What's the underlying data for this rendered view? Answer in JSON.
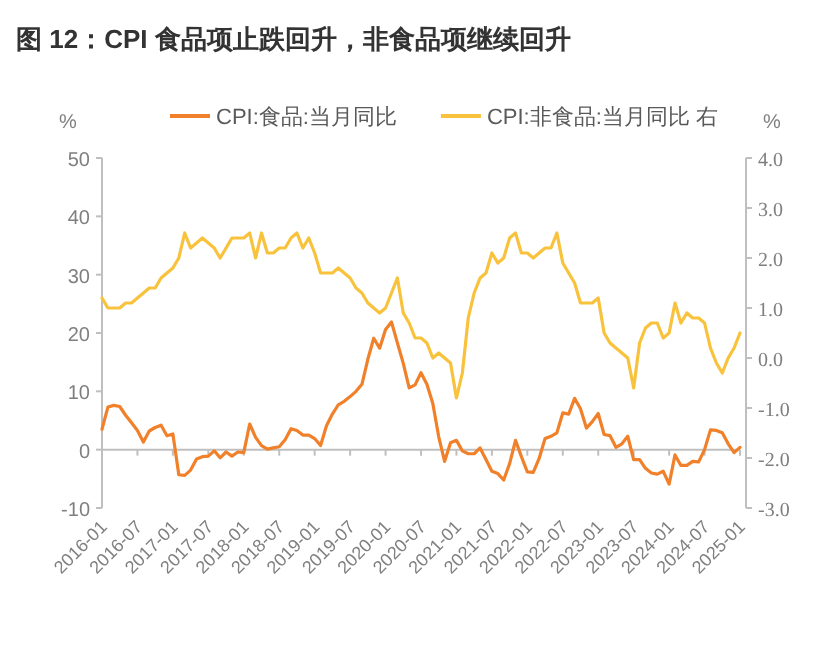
{
  "chart_data": {
    "type": "line",
    "title": "图 12：CPI 食品项止跌回升，非食品项继续回升",
    "ylabel": "%",
    "y2label": "%",
    "categories": [
      "2016-01",
      null,
      null,
      null,
      null,
      null,
      "2016-07",
      null,
      null,
      null,
      null,
      null,
      "2017-01",
      null,
      null,
      null,
      null,
      null,
      "2017-07",
      null,
      null,
      null,
      null,
      null,
      "2018-01",
      null,
      null,
      null,
      null,
      null,
      "2018-07",
      null,
      null,
      null,
      null,
      null,
      "2019-01",
      null,
      null,
      null,
      null,
      null,
      "2019-07",
      null,
      null,
      null,
      null,
      null,
      "2020-01",
      null,
      null,
      null,
      null,
      null,
      "2020-07",
      null,
      null,
      null,
      null,
      null,
      "2021-01",
      null,
      null,
      null,
      null,
      null,
      "2021-07",
      null,
      null,
      null,
      null,
      null,
      "2022-01",
      null,
      null,
      null,
      null,
      null,
      "2022-07",
      null,
      null,
      null,
      null,
      null,
      "2023-01",
      null,
      null,
      null,
      null,
      null,
      "2023-07",
      null,
      null,
      null,
      null,
      null,
      "2024-01",
      null,
      null,
      null,
      null,
      null,
      "2024-07",
      null,
      null,
      null,
      null,
      null,
      "2025-01"
    ],
    "series": [
      {
        "name": "CPI:食品:当月同比",
        "color": "#f0802a",
        "values": [
          3.5,
          7.3,
          7.6,
          7.4,
          5.9,
          4.6,
          3.3,
          1.3,
          3.2,
          3.8,
          4.2,
          2.4,
          2.7,
          -4.3,
          -4.4,
          -3.5,
          -1.6,
          -1.2,
          -1.1,
          -0.2,
          -1.4,
          -0.4,
          -1.1,
          -0.4,
          -0.5,
          4.4,
          2.1,
          0.7,
          0.1,
          0.3,
          0.5,
          1.7,
          3.6,
          3.3,
          2.5,
          2.5,
          1.9,
          0.7,
          4.1,
          6.1,
          7.7,
          8.3,
          9.1,
          10.0,
          11.2,
          15.5,
          19.1,
          17.4,
          20.6,
          21.9,
          18.3,
          14.8,
          10.6,
          11.1,
          13.2,
          11.2,
          7.9,
          2.2,
          -2.0,
          1.2,
          1.6,
          -0.2,
          -0.7,
          -0.7,
          0.3,
          -1.7,
          -3.7,
          -4.1,
          -5.2,
          -2.4,
          1.6,
          -1.2,
          -3.8,
          -3.9,
          -1.5,
          1.9,
          2.3,
          2.9,
          6.3,
          6.1,
          8.8,
          7.0,
          3.7,
          4.8,
          6.2,
          2.6,
          2.4,
          0.4,
          1.0,
          2.3,
          -1.7,
          -1.7,
          -3.2,
          -4.0,
          -4.2,
          -3.7,
          -5.9,
          -0.9,
          -2.7,
          -2.7,
          -2.0,
          -2.1,
          0.0,
          3.4,
          3.3,
          2.9,
          1.0,
          -0.5,
          0.4
        ]
      },
      {
        "name": "CPI:非食品:当月同比 右",
        "color": "#f9c23c",
        "axis": "y2",
        "values": [
          1.2,
          1.0,
          1.0,
          1.0,
          1.1,
          1.1,
          1.2,
          1.3,
          1.4,
          1.4,
          1.6,
          1.7,
          1.8,
          2.0,
          2.5,
          2.2,
          2.3,
          2.4,
          2.3,
          2.2,
          2.0,
          2.2,
          2.4,
          2.4,
          2.4,
          2.5,
          2.0,
          2.5,
          2.1,
          2.1,
          2.2,
          2.2,
          2.4,
          2.5,
          2.2,
          2.4,
          2.1,
          1.7,
          1.7,
          1.7,
          1.8,
          1.7,
          1.6,
          1.4,
          1.3,
          1.1,
          1.0,
          0.9,
          1.0,
          1.3,
          1.6,
          0.9,
          0.7,
          0.4,
          0.4,
          0.3,
          0.0,
          0.1,
          0.0,
          -0.1,
          -0.8,
          -0.3,
          0.8,
          1.3,
          1.6,
          1.7,
          2.1,
          1.9,
          2.0,
          2.4,
          2.5,
          2.1,
          2.1,
          2.0,
          2.1,
          2.2,
          2.2,
          2.5,
          1.9,
          1.7,
          1.5,
          1.1,
          1.1,
          1.1,
          1.2,
          0.5,
          0.3,
          0.2,
          0.1,
          0.0,
          -0.6,
          0.3,
          0.6,
          0.7,
          0.7,
          0.4,
          0.5,
          1.1,
          0.7,
          0.9,
          0.8,
          0.8,
          0.7,
          0.2,
          -0.1,
          -0.3,
          0.0,
          0.2,
          0.5
        ]
      }
    ],
    "ylim": [
      -10,
      50
    ],
    "yticks": [
      -10,
      0,
      10,
      20,
      30,
      40,
      50
    ],
    "y2lim": [
      -3,
      4
    ],
    "y2ticks": [
      {
        "value": -3,
        "label": "-3.0"
      },
      {
        "value": -2,
        "label": "-2.0"
      },
      {
        "value": -1,
        "label": "-1.0"
      },
      {
        "value": 0,
        "label": "0.0"
      },
      {
        "value": 1,
        "label": "1.0"
      },
      {
        "value": 2,
        "label": "2.0"
      },
      {
        "value": 3,
        "label": "3.0"
      },
      {
        "value": 4,
        "label": "4.0"
      }
    ],
    "ref_lines": [
      {
        "axis": "y",
        "value": 0
      }
    ],
    "legend": "top",
    "grid": false
  }
}
